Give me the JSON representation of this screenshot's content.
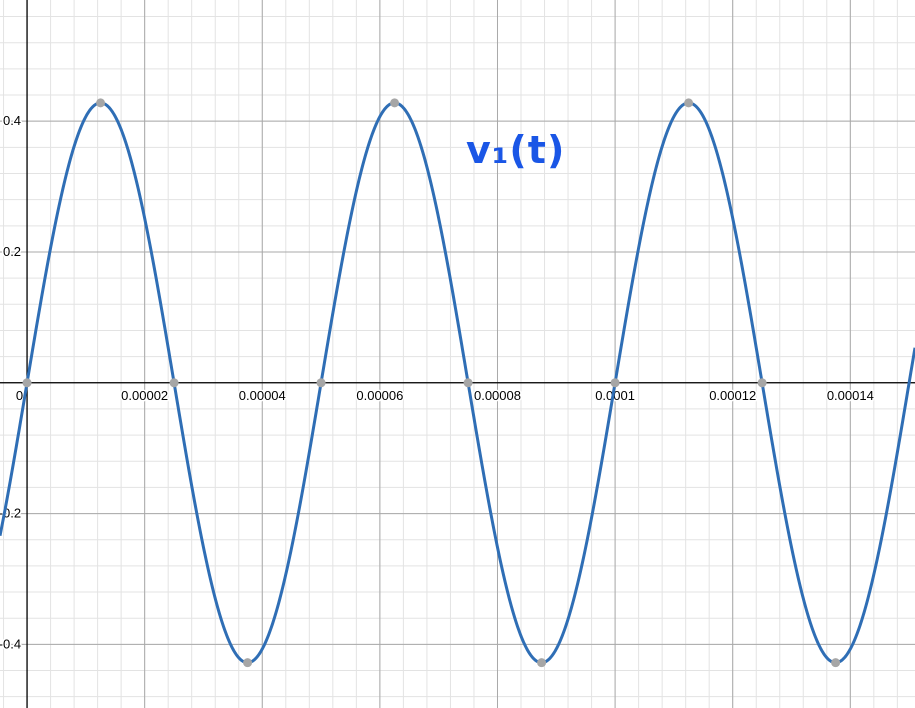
{
  "chart_data": {
    "type": "line",
    "title": "",
    "xlabel": "",
    "ylabel": "",
    "annotation": "v₁(t)",
    "xlim": [
      -4.6e-06,
      0.000151
    ],
    "ylim": [
      -0.4973,
      0.5853
    ],
    "x_ticks": [
      {
        "value": 0,
        "label": "0"
      },
      {
        "value": 2e-05,
        "label": "0.00002"
      },
      {
        "value": 4e-05,
        "label": "0.00004"
      },
      {
        "value": 6e-05,
        "label": "0.00006"
      },
      {
        "value": 8e-05,
        "label": "0.00008"
      },
      {
        "value": 0.0001,
        "label": "0.0001"
      },
      {
        "value": 0.00012,
        "label": "0.00012"
      },
      {
        "value": 0.00014,
        "label": "0.00014"
      }
    ],
    "y_ticks": [
      {
        "value": 0.4,
        "label": "0.4"
      },
      {
        "value": 0.2,
        "label": "0.2"
      },
      {
        "value": -0.2,
        "label": "-0.2"
      },
      {
        "value": -0.4,
        "label": "-0.4"
      }
    ],
    "grid": true,
    "series": [
      {
        "amplitude": 0.428,
        "period": 5e-05,
        "points": [
          [
            0,
            0
          ],
          [
            1.25e-05,
            0.428
          ],
          [
            2.5e-05,
            0
          ],
          [
            3.75e-05,
            -0.428
          ],
          [
            5e-05,
            0
          ],
          [
            6.25e-05,
            0.428
          ],
          [
            7.5e-05,
            0
          ],
          [
            8.75e-05,
            -0.428
          ],
          [
            0.0001,
            0
          ],
          [
            0.0001125,
            0.428
          ],
          [
            0.000125,
            0
          ],
          [
            0.0001375,
            -0.428
          ]
        ]
      }
    ],
    "colors": {
      "curve": "#2f6eb5",
      "marker": "#a6a6a6",
      "annotation": "#1a56e6",
      "major_grid": "#a9a9a9",
      "minor_grid": "#e3e3e3",
      "axis": "#000000"
    }
  }
}
